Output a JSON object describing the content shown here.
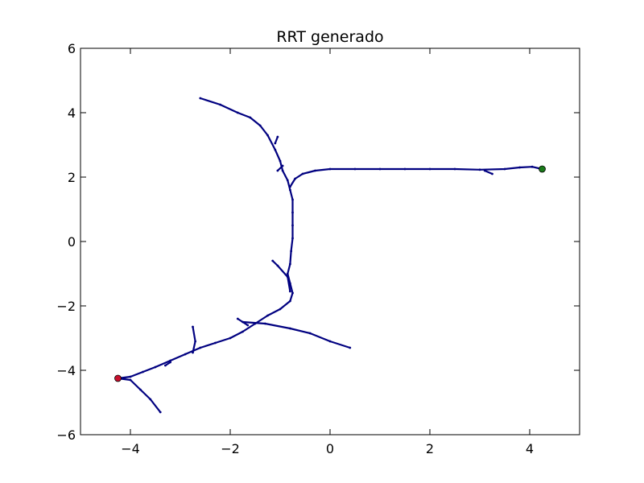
{
  "chart_data": {
    "type": "line",
    "title": "RRT generado",
    "xlabel": "",
    "ylabel": "",
    "xlim": [
      -5,
      5
    ],
    "ylim": [
      -6,
      6
    ],
    "xticks": [
      {
        "value": -4,
        "label": "−4"
      },
      {
        "value": -2,
        "label": "−2"
      },
      {
        "value": 0,
        "label": "0"
      },
      {
        "value": 2,
        "label": "2"
      },
      {
        "value": 4,
        "label": "4"
      }
    ],
    "yticks": [
      {
        "value": 6,
        "label": "6"
      },
      {
        "value": 4,
        "label": "4"
      },
      {
        "value": 2,
        "label": "2"
      },
      {
        "value": 0,
        "label": "0"
      },
      {
        "value": -2,
        "label": "−2"
      },
      {
        "value": -4,
        "label": "−4"
      },
      {
        "value": -6,
        "label": "−6"
      }
    ],
    "grid": false,
    "tree_color": "#000080",
    "start_color": "#c8102e",
    "goal_color": "#1a7a1a",
    "series": [
      {
        "values": [
          [
            -4.25,
            -4.25
          ],
          [
            -4.0,
            -4.2
          ],
          [
            -3.75,
            -4.05
          ],
          [
            -3.5,
            -3.9
          ],
          [
            -3.2,
            -3.7
          ],
          [
            -2.9,
            -3.5
          ],
          [
            -2.6,
            -3.3
          ],
          [
            -2.3,
            -3.15
          ],
          [
            -2.0,
            -3.0
          ],
          [
            -1.75,
            -2.8
          ],
          [
            -1.5,
            -2.55
          ],
          [
            -1.25,
            -2.3
          ],
          [
            -1.0,
            -2.1
          ],
          [
            -0.8,
            -1.85
          ],
          [
            -0.75,
            -1.6
          ],
          [
            -0.8,
            -1.3
          ],
          [
            -0.85,
            -1.0
          ],
          [
            -0.8,
            -0.7
          ],
          [
            -0.78,
            -0.3
          ],
          [
            -0.75,
            0.1
          ],
          [
            -0.75,
            0.5
          ],
          [
            -0.75,
            0.9
          ],
          [
            -0.75,
            1.3
          ],
          [
            -0.8,
            1.6
          ],
          [
            -0.85,
            1.9
          ],
          [
            -0.95,
            2.2
          ],
          [
            -1.0,
            2.5
          ],
          [
            -1.1,
            2.85
          ],
          [
            -1.25,
            3.3
          ],
          [
            -1.4,
            3.6
          ],
          [
            -1.6,
            3.85
          ],
          [
            -1.85,
            4.0
          ],
          [
            -2.2,
            4.25
          ],
          [
            -2.6,
            4.45
          ]
        ]
      },
      {
        "values": [
          [
            -0.8,
            1.7
          ],
          [
            -0.7,
            1.95
          ],
          [
            -0.55,
            2.1
          ],
          [
            -0.3,
            2.2
          ],
          [
            0.0,
            2.25
          ],
          [
            0.5,
            2.25
          ],
          [
            1.0,
            2.25
          ],
          [
            1.5,
            2.25
          ],
          [
            2.0,
            2.25
          ],
          [
            2.5,
            2.25
          ],
          [
            3.0,
            2.23
          ],
          [
            3.5,
            2.25
          ],
          [
            3.8,
            2.3
          ],
          [
            4.05,
            2.32
          ],
          [
            4.25,
            2.25
          ]
        ]
      },
      {
        "values": [
          [
            -1.75,
            -2.5
          ],
          [
            -1.3,
            -2.55
          ],
          [
            -0.8,
            -2.7
          ],
          [
            -0.4,
            -2.85
          ],
          [
            0.0,
            -3.1
          ],
          [
            0.4,
            -3.3
          ]
        ]
      },
      {
        "values": [
          [
            -4.25,
            -4.25
          ],
          [
            -4.0,
            -4.3
          ],
          [
            -3.8,
            -4.6
          ],
          [
            -3.6,
            -4.9
          ],
          [
            -3.4,
            -5.3
          ]
        ]
      },
      {
        "values": [
          [
            -2.75,
            -3.45
          ],
          [
            -2.7,
            -3.1
          ],
          [
            -2.75,
            -2.65
          ]
        ]
      },
      {
        "values": [
          [
            -0.8,
            -1.55
          ],
          [
            -0.85,
            -1.1
          ],
          [
            -1.05,
            -0.75
          ],
          [
            -1.15,
            -0.6
          ]
        ]
      },
      {
        "values": [
          [
            -1.65,
            -2.6
          ],
          [
            -1.85,
            -2.4
          ]
        ]
      },
      {
        "values": [
          [
            -0.95,
            2.35
          ],
          [
            -1.05,
            2.2
          ]
        ]
      },
      {
        "values": [
          [
            3.1,
            2.2
          ],
          [
            3.25,
            2.1
          ]
        ]
      },
      {
        "values": [
          [
            -1.1,
            3.05
          ],
          [
            -1.05,
            3.25
          ]
        ]
      },
      {
        "values": [
          [
            -3.2,
            -3.75
          ],
          [
            -3.3,
            -3.85
          ]
        ]
      }
    ],
    "start_point": {
      "x": -4.25,
      "y": -4.25
    },
    "goal_point": {
      "x": 4.25,
      "y": 2.25
    }
  }
}
